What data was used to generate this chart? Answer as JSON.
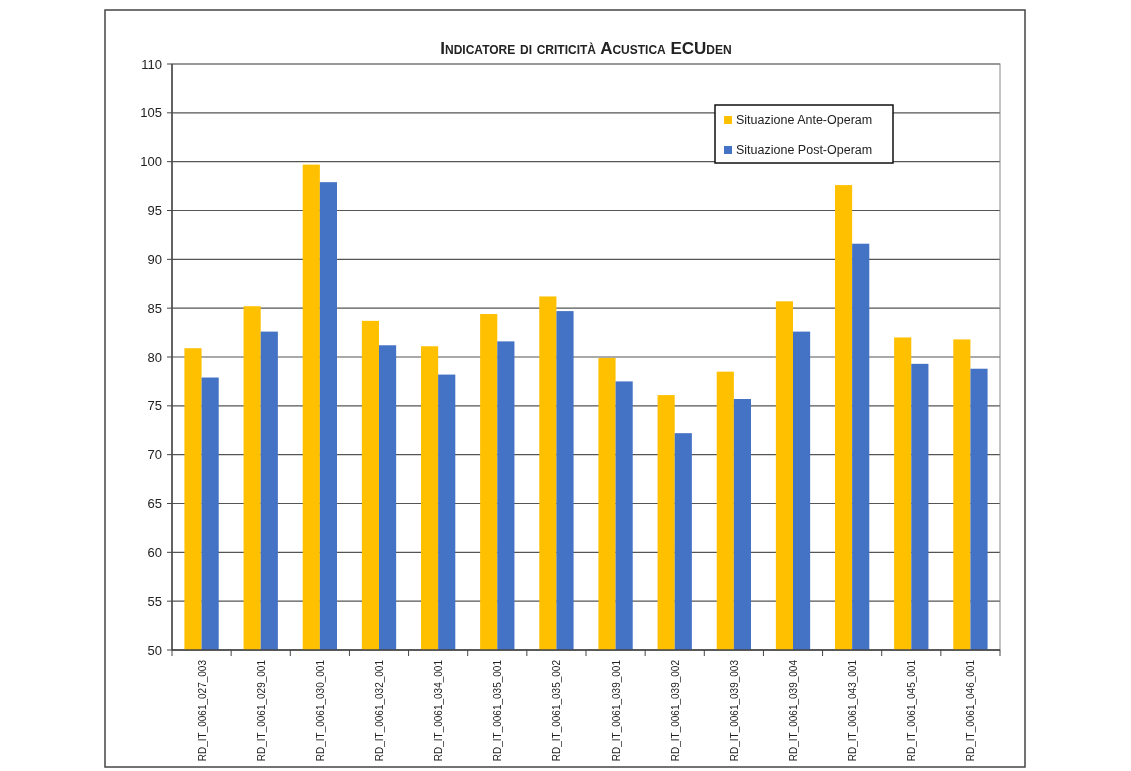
{
  "chart_data": {
    "type": "bar",
    "title": "Indicatore di criticità Acustica ECUden",
    "categories": [
      "RD_IT_0061_027_003",
      "RD_IT_0061_029_001",
      "RD_IT_0061_030_001",
      "RD_IT_0061_032_001",
      "RD_IT_0061_034_001",
      "RD_IT_0061_035_001",
      "RD_IT_0061_035_002",
      "RD_IT_0061_039_001",
      "RD_IT_0061_039_002",
      "RD_IT_0061_039_003",
      "RD_IT_0061_039_004",
      "RD_IT_0061_043_001",
      "RD_IT_0061_045_001",
      "RD_IT_0061_046_001"
    ],
    "series": [
      {
        "name": "Situazione Ante-Operam",
        "color": "#ffc000",
        "values": [
          80.9,
          85.2,
          99.7,
          83.7,
          81.1,
          84.4,
          86.2,
          79.9,
          76.1,
          78.5,
          85.7,
          97.6,
          82.0,
          81.8
        ]
      },
      {
        "name": "Situazione Post-Operam",
        "color": "#4472c4",
        "values": [
          77.9,
          82.6,
          97.9,
          81.2,
          78.2,
          81.6,
          84.7,
          77.5,
          72.2,
          75.7,
          82.6,
          91.6,
          79.3,
          78.8
        ]
      }
    ],
    "ylim": [
      50,
      110
    ],
    "yticks": [
      50,
      55,
      60,
      65,
      70,
      75,
      80,
      85,
      90,
      95,
      100,
      105,
      110
    ],
    "grid": "y",
    "legend": "top right"
  }
}
